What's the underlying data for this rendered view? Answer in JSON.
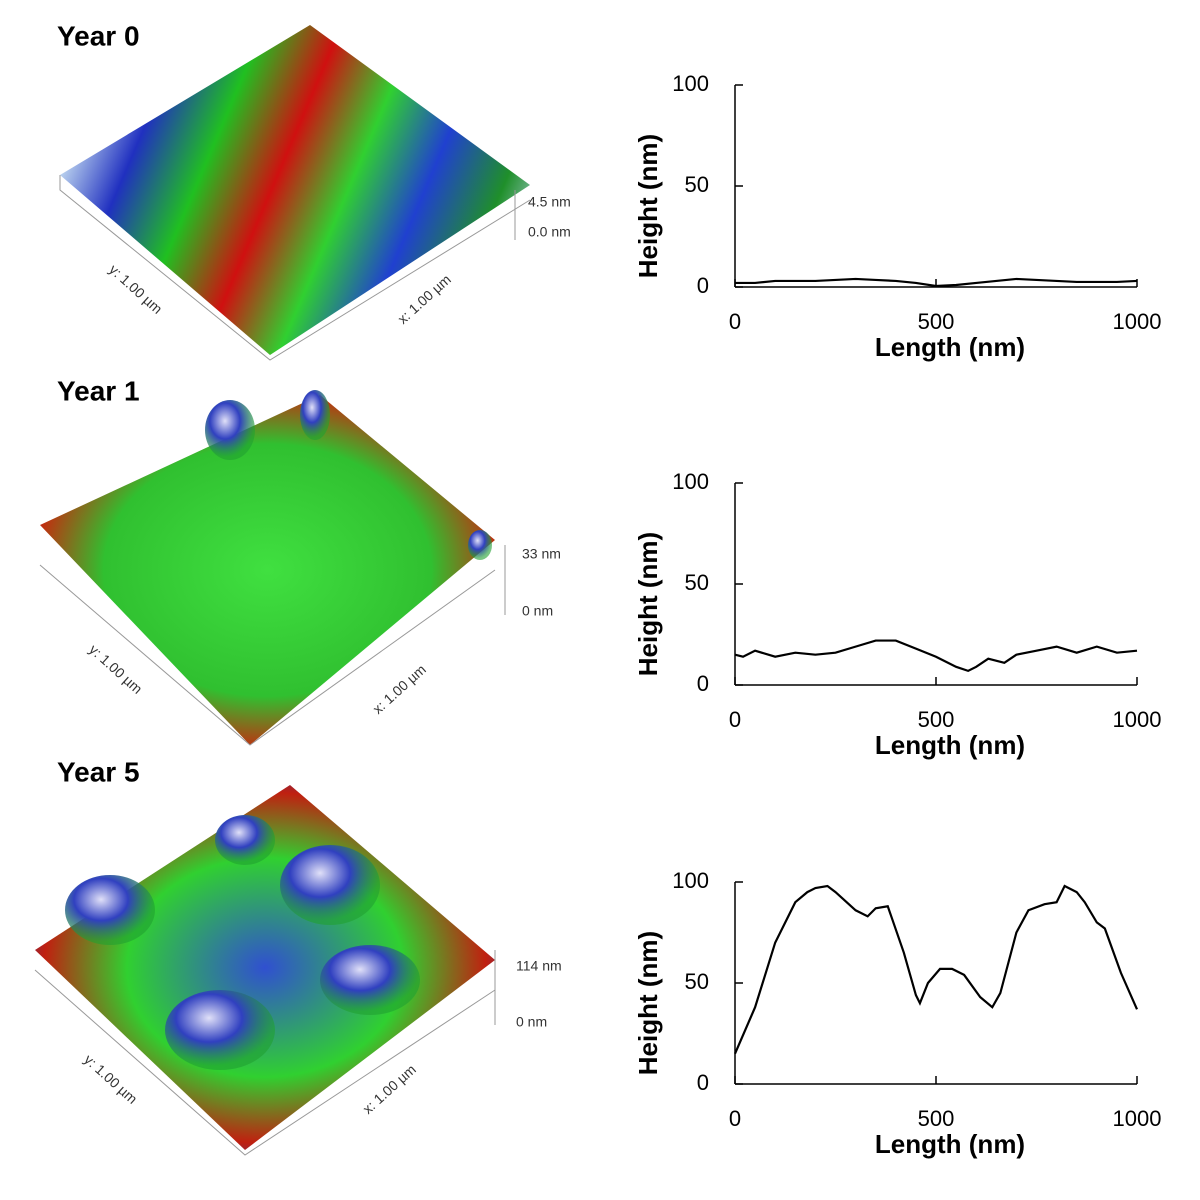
{
  "chart_data": [
    {
      "type": "line",
      "title": "Year 0",
      "x_label": "Length (nm)",
      "y_label": "Height (nm)",
      "color": "#000000",
      "x": [
        0,
        50,
        100,
        150,
        200,
        250,
        300,
        350,
        400,
        450,
        500,
        550,
        600,
        650,
        700,
        750,
        800,
        850,
        900,
        950,
        1000
      ],
      "values": [
        2,
        2,
        3,
        3,
        3,
        3.5,
        4,
        3.5,
        3,
        2,
        0.5,
        1,
        2,
        3,
        4,
        3.5,
        3,
        2.5,
        2.5,
        2.5,
        3
      ],
      "xlim": [
        0,
        1000
      ],
      "ylim": [
        0,
        100
      ],
      "xticks": [
        0,
        500,
        1000
      ],
      "yticks": [
        0,
        50,
        100
      ]
    },
    {
      "type": "line",
      "title": "Year 1",
      "x_label": "Length (nm)",
      "y_label": "Height (nm)",
      "color": "#000000",
      "x": [
        0,
        20,
        50,
        100,
        150,
        200,
        250,
        300,
        350,
        400,
        450,
        500,
        550,
        580,
        600,
        630,
        670,
        700,
        750,
        800,
        850,
        900,
        950,
        1000
      ],
      "values": [
        15,
        14,
        17,
        14,
        16,
        15,
        16,
        19,
        22,
        22,
        18,
        14,
        9,
        7,
        9,
        13,
        11,
        15,
        17,
        19,
        16,
        19,
        16,
        17
      ],
      "xlim": [
        0,
        1000
      ],
      "ylim": [
        0,
        100
      ],
      "xticks": [
        0,
        500,
        1000
      ],
      "yticks": [
        0,
        50,
        100
      ]
    },
    {
      "type": "line",
      "title": "Year 5",
      "x_label": "Length (nm)",
      "y_label": "Height (nm)",
      "color": "#000000",
      "x": [
        0,
        50,
        100,
        150,
        180,
        200,
        230,
        250,
        300,
        330,
        350,
        380,
        420,
        450,
        460,
        480,
        510,
        540,
        570,
        610,
        640,
        660,
        700,
        730,
        770,
        800,
        820,
        850,
        870,
        900,
        920,
        960,
        1000
      ],
      "values": [
        15,
        38,
        70,
        90,
        95,
        97,
        98,
        95,
        86,
        83,
        87,
        88,
        65,
        44,
        40,
        50,
        57,
        57,
        54,
        43,
        38,
        45,
        75,
        86,
        89,
        90,
        98,
        95,
        90,
        80,
        77,
        55,
        37
      ],
      "xlim": [
        0,
        1000
      ],
      "ylim": [
        0,
        100
      ],
      "xticks": [
        0,
        500,
        1000
      ],
      "yticks": [
        0,
        50,
        100
      ]
    }
  ],
  "afm_images": [
    {
      "z_top": "4.5 nm",
      "z_bottom": "0.0 nm",
      "y_axis": "y: 1.00 µm",
      "x_axis": "x: 1.00 µm"
    },
    {
      "z_top": "33 nm",
      "z_bottom": "0 nm",
      "y_axis": "y: 1.00 µm",
      "x_axis": "x: 1.00 µm"
    },
    {
      "z_top": "114 nm",
      "z_bottom": "0 nm",
      "y_axis": "y: 1.00 µm",
      "x_axis": "x: 1.00 µm"
    }
  ]
}
